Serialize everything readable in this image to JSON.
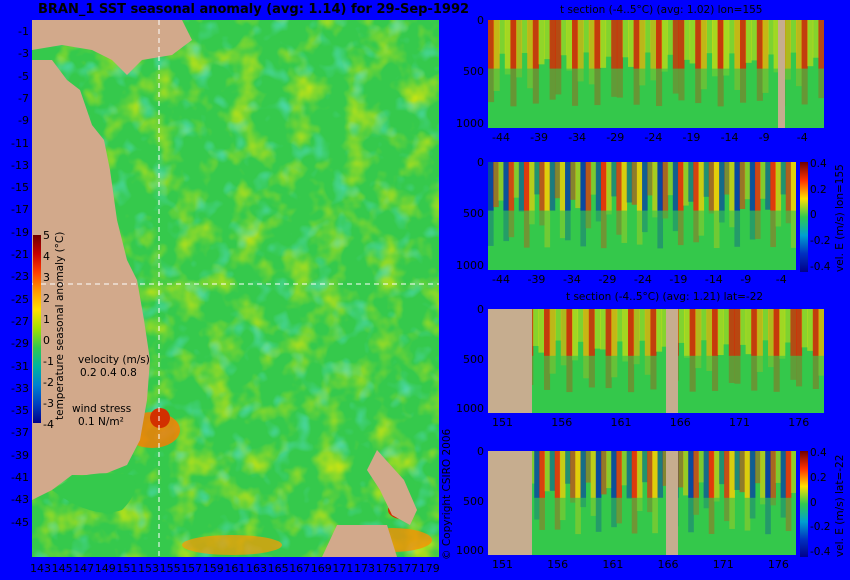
{
  "colors": {
    "background": "#0000fe",
    "land": "#d2a98b",
    "bathy": "#c6ad8f",
    "field": "#33c84a",
    "warm": "#ffd800",
    "hot": "#e03000",
    "cold": "#0030c0"
  },
  "chart_data": [
    {
      "type": "heatmap",
      "title": "BRAN_1  SST seasonal anomaly (avg: 1.14) for 29-Sep-1992",
      "x_ticks": [
        "143",
        "145",
        "147",
        "149",
        "151",
        "153",
        "155",
        "157",
        "159",
        "161",
        "163",
        "165",
        "167",
        "169",
        "171",
        "173",
        "175",
        "177",
        "179"
      ],
      "y_ticks": [
        "-1",
        "-3",
        "-5",
        "-7",
        "-9",
        "-11",
        "-13",
        "-15",
        "-17",
        "-19",
        "-21",
        "-23",
        "-25",
        "-27",
        "-29",
        "-31",
        "-33",
        "-35",
        "-37",
        "-39",
        "-41",
        "-43",
        "-45"
      ],
      "xlim": [
        143,
        180
      ],
      "ylim": [
        -45,
        0
      ],
      "crosshair": {
        "lon": 155,
        "lat": -22
      },
      "colorbar": {
        "label": "temperature seasonal anomaly (°C)",
        "ticks": [
          "5",
          "4",
          "3",
          "2",
          "1",
          "0",
          "-1",
          "-2",
          "-3",
          "-4"
        ],
        "range": [
          -4,
          5
        ]
      },
      "legend": {
        "velocity_label": "velocity (m/s)",
        "velocity_scale": "0.2 0.4 0.8",
        "wind_label": "wind stress",
        "wind_scale": "0.1 N/m²"
      }
    },
    {
      "type": "heatmap",
      "title": "t section (-4..5°C) (avg: 1.02) lon=155",
      "x_ticks": [
        "-44",
        "-39",
        "-34",
        "-29",
        "-24",
        "-19",
        "-14",
        "-9",
        "-4"
      ],
      "y_ticks": [
        "0",
        "500",
        "1000"
      ],
      "xlim": [
        -45,
        0
      ],
      "ylim": [
        1050,
        0
      ]
    },
    {
      "type": "heatmap",
      "title": "",
      "x_ticks": [
        "-44",
        "-39",
        "-34",
        "-29",
        "-24",
        "-19",
        "-14",
        "-9",
        "-4"
      ],
      "y_ticks": [
        "0",
        "500",
        "1000"
      ],
      "xlim": [
        -45,
        0
      ],
      "ylim": [
        1050,
        0
      ],
      "colorbar": {
        "label": "vel. E (m/s) lon=155",
        "ticks": [
          "0.4",
          "0.2",
          "0",
          "-0.2",
          "-0.4"
        ],
        "range": [
          -0.4,
          0.4
        ]
      }
    },
    {
      "type": "heatmap",
      "title": "t section (-4..5°C) (avg: 1.21) lat=-22",
      "x_ticks": [
        "151",
        "156",
        "161",
        "166",
        "171",
        "176"
      ],
      "y_ticks": [
        "0",
        "500",
        "1000"
      ],
      "xlim": [
        150,
        180
      ],
      "ylim": [
        1050,
        0
      ]
    },
    {
      "type": "heatmap",
      "title": "",
      "x_ticks": [
        "151",
        "156",
        "161",
        "166",
        "171",
        "176"
      ],
      "y_ticks": [
        "0",
        "500",
        "1000"
      ],
      "xlim": [
        150,
        180
      ],
      "ylim": [
        1050,
        0
      ],
      "colorbar": {
        "label": "vel. E (m/s) lat=-22",
        "ticks": [
          "0.4",
          "0.2",
          "0",
          "-0.2",
          "-0.4"
        ],
        "range": [
          -0.4,
          0.4
        ]
      }
    }
  ],
  "copyright": "© Copyright CSIRO 2006"
}
